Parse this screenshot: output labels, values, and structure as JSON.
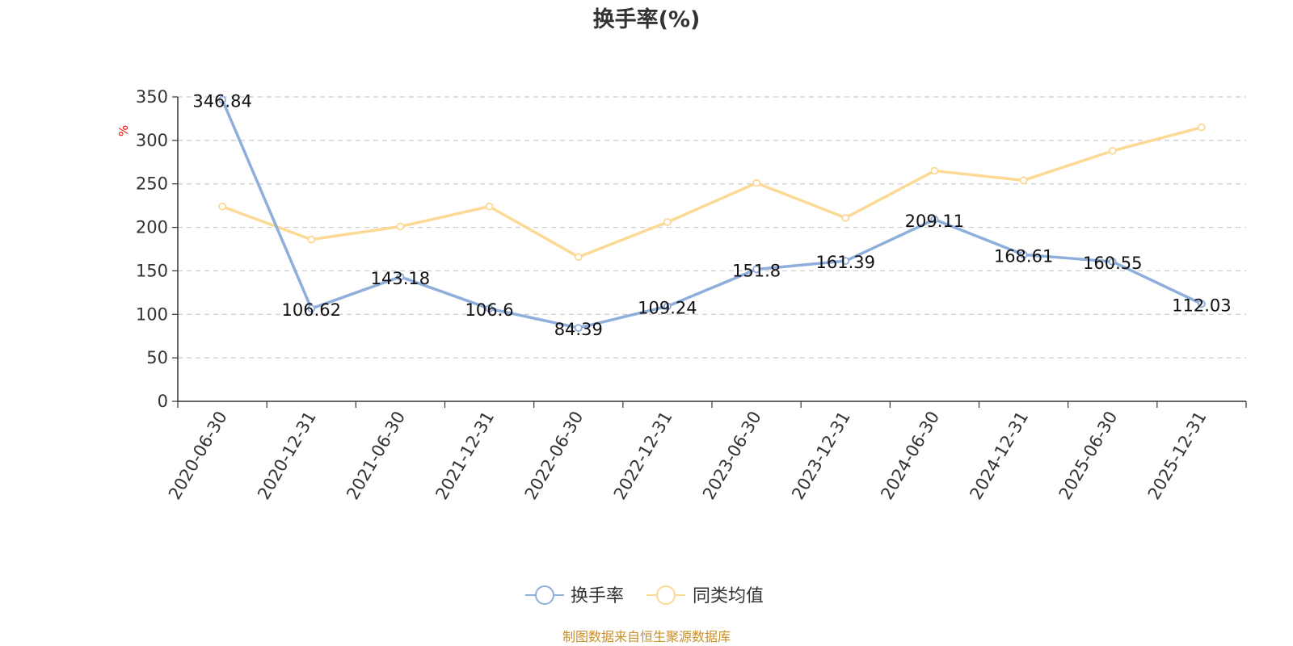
{
  "chart_data": {
    "type": "line",
    "title": "换手率(%)",
    "ylabel": "%",
    "ylim": [
      0,
      350
    ],
    "yticks": [
      0,
      50,
      100,
      150,
      200,
      250,
      300,
      350
    ],
    "grid": true,
    "legend_position": "bottom",
    "categories": [
      "2020-06-30",
      "2020-12-31",
      "2021-06-30",
      "2021-12-31",
      "2022-06-30",
      "2022-12-31",
      "2023-06-30",
      "2023-12-31",
      "2024-06-30",
      "2024-12-31",
      "2025-06-30",
      "2025-12-31"
    ],
    "series": [
      {
        "name": "换手率",
        "color": "#8eaedb",
        "values": [
          346.84,
          106.62,
          143.18,
          106.6,
          84.39,
          109.24,
          151.8,
          161.39,
          209.11,
          168.61,
          160.55,
          112.03
        ],
        "labels": [
          "346.84",
          "106.62",
          "143.18",
          "106.6",
          "84.39",
          "109.24",
          "151.8",
          "161.39",
          "209.11",
          "168.61",
          "160.55",
          "112.03"
        ]
      },
      {
        "name": "同类均值",
        "color": "#fcd995",
        "values": [
          224,
          186,
          201,
          224,
          166,
          206,
          251,
          211,
          265,
          254,
          288,
          315
        ]
      }
    ],
    "source": "制图数据来自恒生聚源数据库"
  }
}
